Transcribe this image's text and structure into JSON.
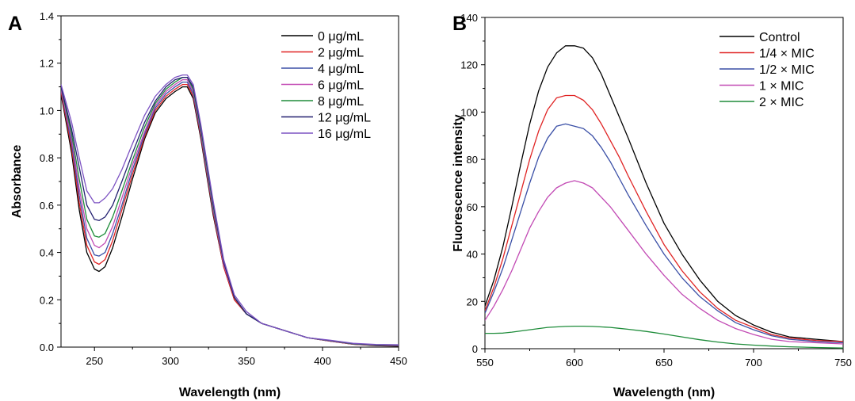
{
  "chart_data": [
    {
      "panel_label": "A",
      "type": "line",
      "xlabel": "Wavelength (nm)",
      "ylabel": "Absorbance",
      "xlim": [
        228,
        450
      ],
      "ylim": [
        0,
        1.4
      ],
      "xticks": [
        250,
        300,
        350,
        400,
        450
      ],
      "yticks": [
        0.0,
        0.2,
        0.4,
        0.6,
        0.8,
        1.0,
        1.2,
        1.4
      ],
      "legend_position": "top-right",
      "x": [
        228,
        235,
        240,
        245,
        250,
        253,
        257,
        262,
        268,
        275,
        283,
        290,
        297,
        303,
        308,
        311,
        315,
        320,
        328,
        335,
        342,
        350,
        360,
        375,
        390,
        405,
        420,
        435,
        450
      ],
      "series": [
        {
          "name": "0 μg/mL",
          "color": "#000000",
          "values": [
            1.07,
            0.82,
            0.58,
            0.4,
            0.33,
            0.32,
            0.34,
            0.42,
            0.55,
            0.71,
            0.88,
            0.99,
            1.05,
            1.08,
            1.1,
            1.1,
            1.05,
            0.88,
            0.56,
            0.34,
            0.2,
            0.14,
            0.1,
            0.07,
            0.04,
            0.025,
            0.012,
            0.006,
            0.004
          ]
        },
        {
          "name": "2 μg/mL",
          "color": "#e02424",
          "values": [
            1.08,
            0.84,
            0.61,
            0.43,
            0.36,
            0.35,
            0.37,
            0.45,
            0.58,
            0.73,
            0.89,
            1.0,
            1.06,
            1.09,
            1.11,
            1.11,
            1.06,
            0.89,
            0.57,
            0.34,
            0.2,
            0.14,
            0.1,
            0.07,
            0.04,
            0.025,
            0.012,
            0.007,
            0.005
          ]
        },
        {
          "name": "4 μg/mL",
          "color": "#3a4fa6",
          "values": [
            1.09,
            0.86,
            0.64,
            0.46,
            0.39,
            0.385,
            0.4,
            0.48,
            0.6,
            0.75,
            0.9,
            1.01,
            1.07,
            1.1,
            1.12,
            1.12,
            1.07,
            0.9,
            0.58,
            0.35,
            0.21,
            0.14,
            0.1,
            0.07,
            0.04,
            0.026,
            0.013,
            0.008,
            0.006
          ]
        },
        {
          "name": "6 μg/mL",
          "color": "#c24ab4",
          "values": [
            1.09,
            0.88,
            0.67,
            0.5,
            0.43,
            0.42,
            0.44,
            0.51,
            0.63,
            0.77,
            0.91,
            1.02,
            1.08,
            1.11,
            1.13,
            1.13,
            1.08,
            0.91,
            0.59,
            0.35,
            0.21,
            0.14,
            0.1,
            0.07,
            0.04,
            0.026,
            0.013,
            0.008,
            0.007
          ]
        },
        {
          "name": "8 μg/mL",
          "color": "#1e8c3a",
          "values": [
            1.1,
            0.9,
            0.71,
            0.54,
            0.47,
            0.465,
            0.48,
            0.55,
            0.66,
            0.79,
            0.93,
            1.03,
            1.09,
            1.12,
            1.14,
            1.14,
            1.09,
            0.92,
            0.6,
            0.36,
            0.21,
            0.14,
            0.1,
            0.07,
            0.04,
            0.027,
            0.014,
            0.009,
            0.008
          ]
        },
        {
          "name": "12 μg/mL",
          "color": "#232070",
          "values": [
            1.1,
            0.92,
            0.76,
            0.6,
            0.54,
            0.535,
            0.55,
            0.6,
            0.7,
            0.82,
            0.95,
            1.04,
            1.1,
            1.13,
            1.14,
            1.14,
            1.1,
            0.93,
            0.61,
            0.36,
            0.21,
            0.14,
            0.1,
            0.07,
            0.04,
            0.028,
            0.015,
            0.01,
            0.009
          ]
        },
        {
          "name": "16 μg/mL",
          "color": "#7c52c2",
          "values": [
            1.11,
            0.95,
            0.8,
            0.66,
            0.61,
            0.61,
            0.63,
            0.67,
            0.75,
            0.86,
            0.98,
            1.06,
            1.11,
            1.14,
            1.15,
            1.15,
            1.11,
            0.94,
            0.62,
            0.37,
            0.22,
            0.15,
            0.1,
            0.07,
            0.04,
            0.029,
            0.016,
            0.011,
            0.01
          ]
        }
      ]
    },
    {
      "panel_label": "B",
      "type": "line",
      "xlabel": "Wavelength (nm)",
      "ylabel": "Fluorescence intensity",
      "xlim": [
        550,
        750
      ],
      "ylim": [
        0,
        140
      ],
      "xticks": [
        550,
        600,
        650,
        700,
        750
      ],
      "yticks": [
        0,
        20,
        40,
        60,
        80,
        100,
        120,
        140
      ],
      "legend_position": "top-right",
      "x": [
        550,
        555,
        560,
        565,
        570,
        575,
        580,
        585,
        590,
        595,
        600,
        605,
        610,
        615,
        620,
        625,
        630,
        640,
        650,
        660,
        670,
        680,
        690,
        700,
        710,
        720,
        735,
        750
      ],
      "series": [
        {
          "name": "Control",
          "color": "#000000",
          "values": [
            18,
            29,
            43,
            60,
            78,
            95,
            109,
            119,
            125,
            128,
            128,
            127,
            123,
            116,
            107,
            98,
            89,
            70,
            53,
            40,
            29,
            20,
            14,
            10,
            7,
            5,
            4,
            3
          ]
        },
        {
          "name": "1/4 × MIC",
          "color": "#e02424",
          "values": [
            16,
            26,
            38,
            52,
            66,
            80,
            92,
            101,
            106,
            107,
            107,
            105,
            101,
            95,
            88,
            81,
            73,
            58,
            44,
            33,
            24,
            17,
            12,
            9,
            6,
            4.5,
            3.5,
            3
          ]
        },
        {
          "name": "1/2 × MIC",
          "color": "#3a4fa6",
          "values": [
            15,
            24,
            34,
            46,
            58,
            70,
            81,
            89,
            94,
            95,
            94,
            93,
            90,
            85,
            79,
            72,
            65,
            52,
            40,
            30,
            22,
            16,
            11,
            8,
            5.5,
            4,
            3,
            2.5
          ]
        },
        {
          "name": "1 × MIC",
          "color": "#c24ab4",
          "values": [
            12,
            18,
            25,
            33,
            42,
            51,
            58,
            64,
            68,
            70,
            71,
            70,
            68,
            64,
            60,
            55,
            50,
            40,
            31,
            23,
            17,
            12,
            8.5,
            6,
            4,
            3,
            2.5,
            2
          ]
        },
        {
          "name": "2 × MIC",
          "color": "#1e8c3a",
          "values": [
            6.5,
            6.5,
            6.6,
            7,
            7.5,
            8,
            8.5,
            9,
            9.2,
            9.4,
            9.5,
            9.5,
            9.4,
            9.2,
            9,
            8.6,
            8.2,
            7.3,
            6.2,
            5,
            3.8,
            2.8,
            2,
            1.5,
            1.1,
            0.8,
            0.5,
            0.3
          ]
        }
      ]
    }
  ]
}
